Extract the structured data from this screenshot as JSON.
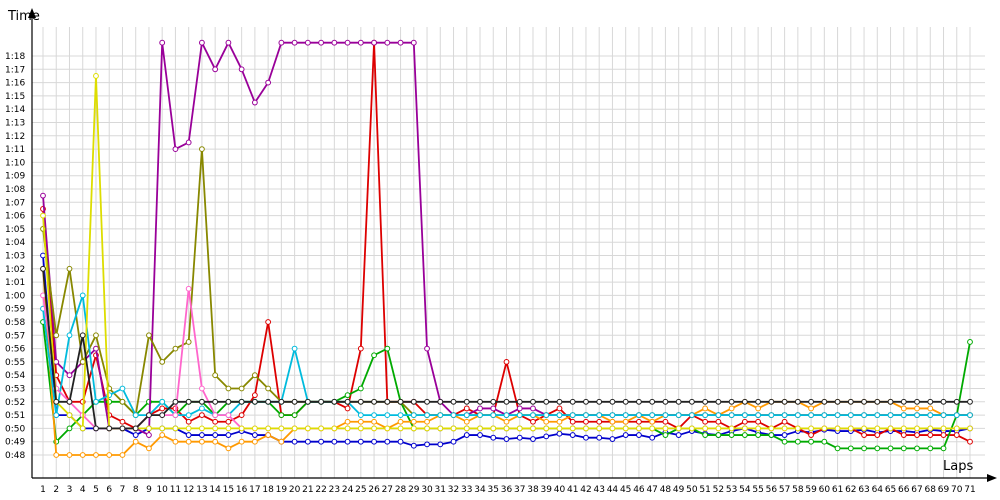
{
  "chart_data": {
    "type": "line",
    "title": "",
    "xlabel": "Laps",
    "ylabel": "Time",
    "grid": true,
    "x_ticks": [
      1,
      2,
      3,
      4,
      5,
      6,
      7,
      8,
      9,
      10,
      11,
      12,
      13,
      14,
      15,
      16,
      17,
      18,
      19,
      20,
      21,
      22,
      23,
      24,
      25,
      26,
      27,
      28,
      29,
      30,
      31,
      32,
      33,
      34,
      35,
      36,
      37,
      38,
      39,
      40,
      41,
      42,
      43,
      44,
      45,
      46,
      47,
      48,
      49,
      50,
      51,
      52,
      53,
      54,
      55,
      56,
      57,
      58,
      59,
      60,
      61,
      62,
      63,
      64,
      65,
      66,
      67,
      68,
      69,
      70,
      71
    ],
    "y_ticks": [
      "0:48",
      "0:49",
      "0:50",
      "0:51",
      "0:52",
      "0:53",
      "0:54",
      "0:55",
      "0:56",
      "0:57",
      "0:58",
      "0:59",
      "1:00",
      "1:01",
      "1:02",
      "1:03",
      "1:04",
      "1:05",
      "1:06",
      "1:07",
      "1:08",
      "1:09",
      "1:10",
      "1:11",
      "1:12",
      "1:13",
      "1:14",
      "1:15",
      "1:16",
      "1:17",
      "1:18"
    ],
    "xlim": [
      1,
      71
    ],
    "ylim_seconds": [
      47,
      79
    ],
    "series": [
      {
        "color": "#0000cc",
        "values": [
          63,
          51,
          51,
          50,
          50,
          50,
          50,
          49.5,
          50,
          50,
          50,
          49.5,
          49.5,
          49.5,
          49.5,
          49.8,
          49.5,
          49.5,
          49,
          49,
          49,
          49,
          49,
          49,
          49,
          49,
          49,
          49,
          48.7,
          48.8,
          48.8,
          49,
          49.5,
          49.5,
          49.3,
          49.2,
          49.3,
          49.2,
          49.4,
          49.6,
          49.5,
          49.3,
          49.3,
          49.2,
          49.5,
          49.5,
          49.3,
          49.7,
          49.5,
          49.8,
          49.6,
          49.5,
          49.8,
          50,
          49.7,
          49.5,
          49.5,
          49.8,
          49.7,
          49.9,
          49.8,
          49.8,
          49.9,
          49.7,
          49.8,
          49.8,
          49.7,
          49.9,
          49.8,
          49.8,
          50
        ]
      },
      {
        "color": "#dd0000",
        "values": [
          66.5,
          54,
          52,
          52,
          55.5,
          51,
          50.5,
          50,
          51,
          51.5,
          51.5,
          50.5,
          51,
          50.5,
          50.5,
          51,
          52.5,
          58,
          51,
          51,
          52,
          52,
          52,
          51.5,
          56,
          79,
          52,
          52,
          52,
          51,
          51,
          51,
          51.5,
          51,
          51,
          55,
          51,
          50.5,
          51,
          51.5,
          50.5,
          50.5,
          50.5,
          50.5,
          50.5,
          50.5,
          50.5,
          50.5,
          50,
          51,
          50.5,
          50.5,
          50,
          50.5,
          50.5,
          50,
          50.5,
          50,
          49.5,
          50,
          50,
          50,
          49.5,
          49.5,
          50,
          49.5,
          49.5,
          49.5,
          49.5,
          49.5,
          49
        ]
      },
      {
        "color": "#00aa00",
        "values": [
          58,
          49,
          50,
          51,
          52,
          52,
          52,
          51,
          52,
          52,
          51,
          52,
          52,
          51,
          52,
          52,
          52,
          52,
          51,
          51,
          52,
          52,
          52,
          52.5,
          53,
          55.5,
          56,
          52,
          50,
          50,
          50,
          50,
          50,
          50,
          50,
          50,
          50,
          50,
          50,
          50,
          50,
          50,
          50,
          50,
          50,
          50,
          50,
          49.5,
          50,
          50,
          49.5,
          49.5,
          49.5,
          49.5,
          49.5,
          49.5,
          49,
          49,
          49,
          49,
          48.5,
          48.5,
          48.5,
          48.5,
          48.5,
          48.5,
          48.5,
          48.5,
          48.5,
          51,
          56.5
        ]
      },
      {
        "color": "#ff9900",
        "values": [
          62,
          48,
          48,
          48,
          48,
          48,
          48,
          49,
          48.5,
          49.5,
          49,
          49,
          49,
          49,
          48.5,
          49,
          49,
          49.5,
          49,
          50,
          50,
          50,
          50,
          50.5,
          50.5,
          50.5,
          50,
          50.5,
          50.5,
          50.5,
          51,
          51,
          50.5,
          51,
          51,
          50.5,
          51,
          51,
          50.5,
          50.5,
          51,
          51,
          51,
          50.5,
          50.5,
          51,
          50.5,
          51,
          51,
          51,
          51.5,
          51,
          51.5,
          52,
          51.5,
          52,
          52,
          52,
          51.5,
          52,
          52,
          52,
          52,
          52,
          52,
          51.5,
          51.5,
          51.5,
          51,
          51,
          51
        ]
      },
      {
        "color": "#990099",
        "values": [
          67.5,
          55,
          54,
          55,
          56,
          50,
          50,
          50,
          49.5,
          79,
          71,
          71.5,
          79,
          77,
          79,
          77,
          74.5,
          76,
          79,
          79,
          79,
          79,
          79,
          79,
          79,
          79,
          79,
          79,
          79,
          56,
          52,
          51,
          51,
          51.5,
          51.5,
          51,
          51.5,
          51.5,
          51,
          51,
          51,
          51,
          51,
          51,
          51,
          51,
          51,
          51,
          51,
          51,
          51,
          51,
          51,
          51,
          51,
          51,
          51,
          51,
          51,
          51,
          51,
          51,
          51,
          51,
          51,
          51,
          51,
          51,
          51,
          51,
          51
        ]
      },
      {
        "color": "#888800",
        "values": [
          65,
          57,
          62,
          55,
          57,
          53,
          52,
          51,
          57,
          55,
          56,
          56.5,
          71,
          54,
          53,
          53,
          54,
          53,
          52,
          52,
          52,
          52,
          52,
          52,
          52,
          52,
          52,
          52,
          51,
          51,
          51,
          51,
          51,
          51,
          51,
          51,
          51,
          51,
          51,
          51,
          51,
          51,
          51,
          51,
          51,
          51,
          51,
          51,
          51,
          51,
          51,
          51,
          51,
          51,
          51,
          51,
          51,
          51,
          51,
          51,
          51,
          51,
          51,
          51,
          51,
          51,
          51,
          51,
          51,
          51,
          51
        ]
      },
      {
        "color": "#00bbdd",
        "values": [
          59,
          51,
          57,
          60,
          52,
          52.5,
          53,
          51,
          51,
          52,
          51,
          51,
          51.5,
          51,
          51,
          52,
          52,
          52,
          52,
          56,
          52,
          52,
          52,
          52,
          51,
          51,
          51,
          51,
          51,
          51,
          51,
          51,
          51,
          51,
          51,
          51,
          51,
          51,
          51,
          51,
          51,
          51,
          51,
          51,
          51,
          51,
          51,
          51,
          51,
          51,
          51,
          51,
          51,
          51,
          51,
          51,
          51,
          51,
          51,
          51,
          51,
          51,
          51,
          51,
          51,
          51,
          51,
          51,
          51,
          51,
          51
        ]
      },
      {
        "color": "#ff66cc",
        "values": [
          60,
          53,
          52,
          51,
          50,
          50,
          50,
          50,
          51,
          51,
          51,
          60.5,
          53,
          51,
          51,
          50,
          50,
          50,
          50,
          50,
          50,
          50,
          50,
          50,
          50,
          50,
          50,
          50,
          50,
          50,
          50,
          50,
          50,
          50,
          50,
          50,
          50,
          50,
          50,
          50,
          50,
          50,
          50,
          50,
          50,
          50,
          50,
          50,
          50,
          50,
          50,
          50,
          50,
          50,
          50,
          50,
          50,
          50,
          50,
          50,
          50,
          50,
          50,
          50,
          50,
          50,
          50,
          50,
          50,
          50,
          50
        ]
      },
      {
        "color": "#dddd00",
        "values": [
          66,
          52,
          51,
          50,
          76.5,
          50,
          50,
          50,
          50,
          50,
          50,
          50,
          50,
          50,
          50,
          50,
          50,
          50,
          50,
          50,
          50,
          50,
          50,
          50,
          50,
          50,
          50,
          50,
          50,
          50,
          50,
          50,
          50,
          50,
          50,
          50,
          50,
          50,
          50,
          50,
          50,
          50,
          50,
          50,
          50,
          50,
          50,
          50,
          50,
          50,
          50,
          50,
          50,
          50,
          50,
          50,
          50,
          50,
          50,
          50,
          50,
          50,
          50,
          50,
          50,
          50,
          50,
          50,
          50,
          50,
          50
        ]
      },
      {
        "color": "#222222",
        "values": [
          62,
          52,
          52,
          57,
          50,
          50,
          50,
          50,
          51,
          51,
          52,
          52,
          52,
          52,
          52,
          52,
          52,
          52,
          52,
          52,
          52,
          52,
          52,
          52,
          52,
          52,
          52,
          52,
          52,
          52,
          52,
          52,
          52,
          52,
          52,
          52,
          52,
          52,
          52,
          52,
          52,
          52,
          52,
          52,
          52,
          52,
          52,
          52,
          52,
          52,
          52,
          52,
          52,
          52,
          52,
          52,
          52,
          52,
          52,
          52,
          52,
          52,
          52,
          52,
          52,
          52,
          52,
          52,
          52,
          52,
          52
        ]
      }
    ]
  }
}
